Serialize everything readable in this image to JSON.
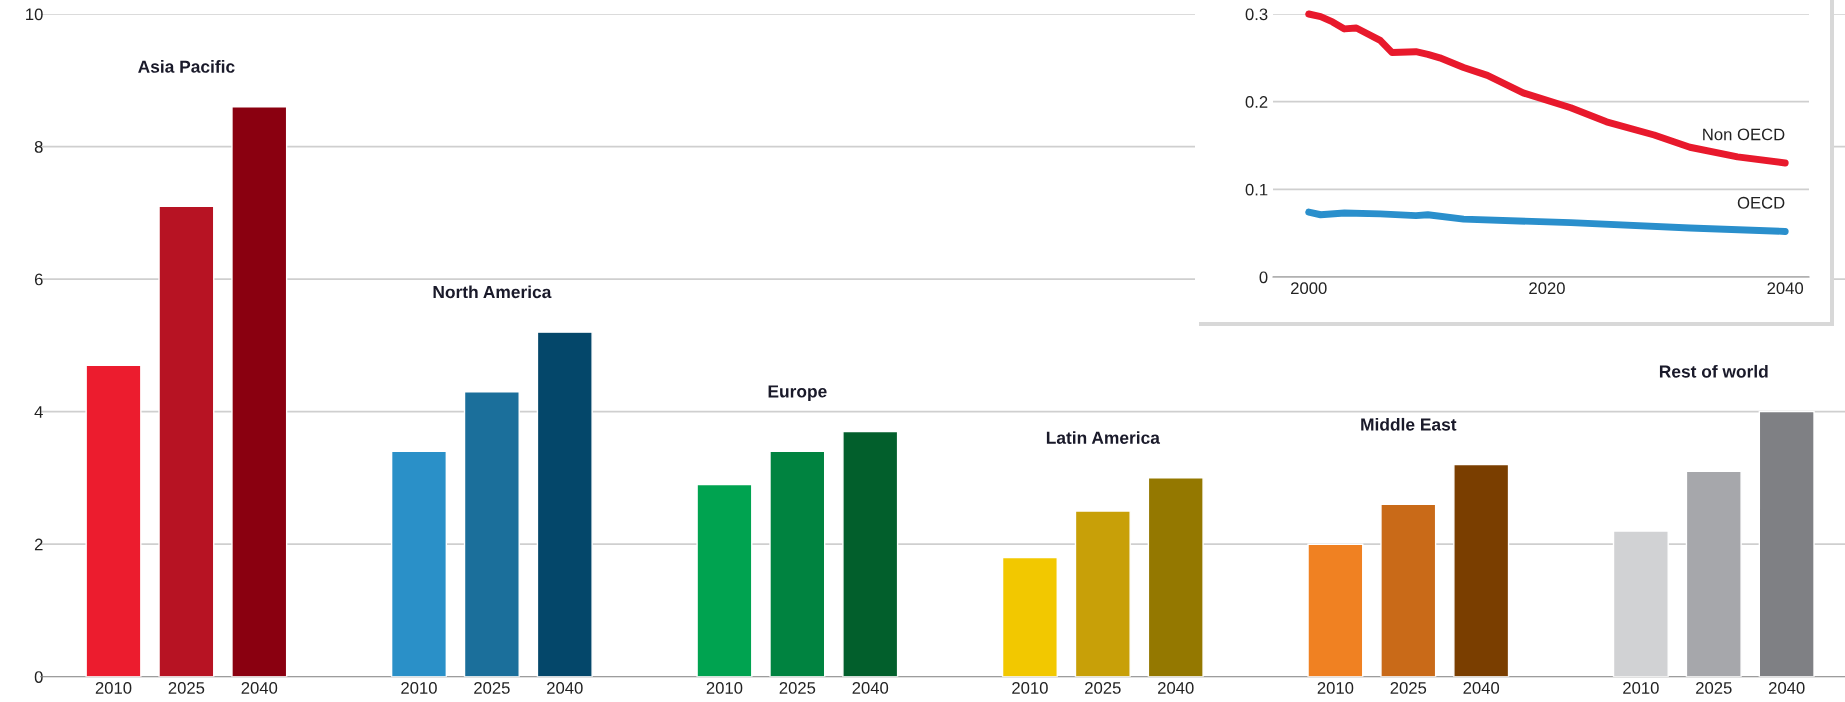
{
  "chart_data": [
    {
      "type": "bar",
      "categories": [
        "2010",
        "2025",
        "2040",
        "2010",
        "2025",
        "2040",
        "2010",
        "2025",
        "2040",
        "2010",
        "2025",
        "2040",
        "2010",
        "2025",
        "2040",
        "2010",
        "2025",
        "2040"
      ],
      "values": [
        4.7,
        7.1,
        8.6,
        3.4,
        4.3,
        5.2,
        2.9,
        3.4,
        3.7,
        1.8,
        2.5,
        3.0,
        2.0,
        2.6,
        3.2,
        2.2,
        3.1,
        4.0
      ],
      "colors": [
        "#ec1c2e",
        "#b71323",
        "#8a0010",
        "#2a90c8",
        "#1b6f9b",
        "#04476a",
        "#00a350",
        "#008340",
        "#025f2c",
        "#f2c800",
        "#c8a008",
        "#947800",
        "#f08122",
        "#c96a18",
        "#7a3e00",
        "#d1d2d4",
        "#a6a7ab",
        "#7f8084"
      ],
      "annotations": [
        "Asia Pacific",
        "North America",
        "Europe",
        "Latin America",
        "Middle East",
        "Rest of world"
      ],
      "ylim": [
        0,
        10
      ],
      "yticks": [
        0,
        2,
        4,
        6,
        8,
        10
      ],
      "grid": "y"
    },
    {
      "type": "line",
      "series": [
        {
          "name": "Non OECD",
          "color": "#e8192c",
          "x": [
            2000,
            2001,
            2002,
            2003,
            2004,
            2006,
            2007,
            2009,
            2010,
            2011,
            2013,
            2015,
            2018,
            2022,
            2025,
            2029,
            2032,
            2036,
            2040
          ],
          "values": [
            0.3,
            0.297,
            0.291,
            0.283,
            0.284,
            0.27,
            0.256,
            0.257,
            0.254,
            0.25,
            0.239,
            0.23,
            0.21,
            0.193,
            0.177,
            0.162,
            0.148,
            0.137,
            0.13
          ]
        },
        {
          "name": "OECD",
          "color": "#2a8fcc",
          "x": [
            2000,
            2001,
            2003,
            2006,
            2009,
            2010,
            2013,
            2022,
            2032,
            2040
          ],
          "values": [
            0.074,
            0.071,
            0.073,
            0.072,
            0.07,
            0.071,
            0.066,
            0.062,
            0.056,
            0.052
          ]
        }
      ],
      "xlim": [
        1997,
        2042
      ],
      "xticks": [
        2000,
        2020,
        2040
      ],
      "ylim": [
        0,
        0.3
      ],
      "yticks": [
        0,
        0.1,
        0.2,
        0.3
      ],
      "grid": "y"
    }
  ]
}
